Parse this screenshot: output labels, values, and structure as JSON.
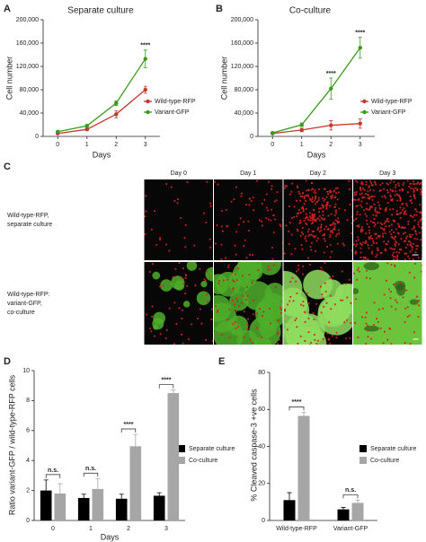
{
  "chart_data": [
    {
      "type": "line",
      "letter": "A",
      "title": "Separate culture",
      "xlabel": "Days",
      "ylabel": "Cell number",
      "x": [
        0,
        1,
        2,
        3
      ],
      "xlim": [
        -0.5,
        3.5
      ],
      "xticks": [
        0,
        1,
        2,
        3
      ],
      "ylim": [
        0,
        200000
      ],
      "yticks": [
        0,
        {
          "value": 40000,
          "label": "40,000"
        },
        {
          "value": 80000,
          "label": "80,000"
        },
        {
          "value": 120000,
          "label": "120,000"
        },
        {
          "value": 160000,
          "label": "160,000"
        },
        {
          "value": 200000,
          "label": "200,000"
        }
      ],
      "series": [
        {
          "name": "Wild-type-RFP",
          "color": "#c0392b",
          "values": [
            5000,
            12000,
            38000,
            80000
          ],
          "errors": [
            1000,
            2000,
            6000,
            6000
          ]
        },
        {
          "name": "Variant-GFP",
          "color": "#3a9a1e",
          "values": [
            8000,
            18000,
            57000,
            133000
          ],
          "errors": [
            1500,
            2500,
            4000,
            15000
          ]
        }
      ],
      "annotations": [
        {
          "text": "****",
          "x": 3
        }
      ],
      "legend": "lower right"
    },
    {
      "type": "line",
      "letter": "B",
      "title": "Co-culture",
      "xlabel": "Days",
      "ylabel": "Cell number",
      "x": [
        0,
        1,
        2,
        3
      ],
      "xlim": [
        -0.5,
        3.5
      ],
      "xticks": [
        0,
        1,
        2,
        3
      ],
      "ylim": [
        0,
        200000
      ],
      "yticks": [
        0,
        {
          "value": 40000,
          "label": "40,000"
        },
        {
          "value": 80000,
          "label": "80,000"
        },
        {
          "value": 120000,
          "label": "120,000"
        },
        {
          "value": 160000,
          "label": "160,000"
        },
        {
          "value": 200000,
          "label": "200,000"
        }
      ],
      "series": [
        {
          "name": "Wild-type-RFP",
          "color": "#c0392b",
          "values": [
            5000,
            11000,
            19000,
            22000
          ],
          "errors": [
            1000,
            3000,
            8000,
            8000
          ]
        },
        {
          "name": "Variant-GFP",
          "color": "#3a9a1e",
          "values": [
            6000,
            20000,
            82000,
            152000
          ],
          "errors": [
            1500,
            3000,
            18000,
            18000
          ]
        }
      ],
      "annotations": [
        {
          "text": "****",
          "x": 2
        },
        {
          "text": "****",
          "x": 3
        }
      ],
      "legend": "lower right"
    },
    {
      "type": "bar",
      "letter": "D",
      "xlabel": "Days",
      "ylabel": "Ratio variant-GFP / wild-type-RFP cells",
      "categories": [
        "0",
        "1",
        "2",
        "3"
      ],
      "ylim": [
        0,
        10
      ],
      "yticks": [
        0,
        2,
        4,
        6,
        8,
        10
      ],
      "series": [
        {
          "name": "Separate culture",
          "color": "#000000",
          "values": [
            2.0,
            1.5,
            1.45,
            1.65
          ],
          "errors": [
            0.7,
            0.25,
            0.3,
            0.2
          ]
        },
        {
          "name": "Co-culture",
          "color": "#a6a6a6",
          "values": [
            1.8,
            2.1,
            4.95,
            8.5
          ],
          "errors": [
            0.65,
            0.7,
            0.8,
            0.2
          ]
        }
      ],
      "annotations": [
        {
          "text": "n.s.",
          "category": "0"
        },
        {
          "text": "n.s.",
          "category": "1"
        },
        {
          "text": "****",
          "category": "2"
        },
        {
          "text": "****",
          "category": "3"
        }
      ],
      "legend": "right"
    },
    {
      "type": "bar",
      "letter": "E",
      "ylabel": "% Cleaved caspase-3 +ve cells",
      "categories": [
        "Wild-type-RFP",
        "Variant-GFP"
      ],
      "ylim": [
        0,
        80
      ],
      "yticks": [
        0,
        20,
        40,
        60,
        80
      ],
      "series": [
        {
          "name": "Separate culture",
          "color": "#000000",
          "values": [
            11,
            6
          ],
          "errors": [
            4,
            1
          ]
        },
        {
          "name": "Co-culture",
          "color": "#a6a6a6",
          "values": [
            56.5,
            9.5
          ],
          "errors": [
            2,
            1.5
          ]
        }
      ],
      "annotations": [
        {
          "text": "****",
          "category": "Wild-type-RFP"
        },
        {
          "text": "n.s.",
          "category": "Variant-GFP"
        }
      ],
      "legend": "right"
    }
  ],
  "image_panel": {
    "letter": "C",
    "columns": [
      "Day 0",
      "Day 1",
      "Day 2",
      "Day 3"
    ],
    "rows": [
      [
        "Wild-type-RFP,",
        "separate culture"
      ],
      [
        "Wild-type-RFP:",
        "variant-GFP,",
        "co-culture"
      ]
    ]
  }
}
